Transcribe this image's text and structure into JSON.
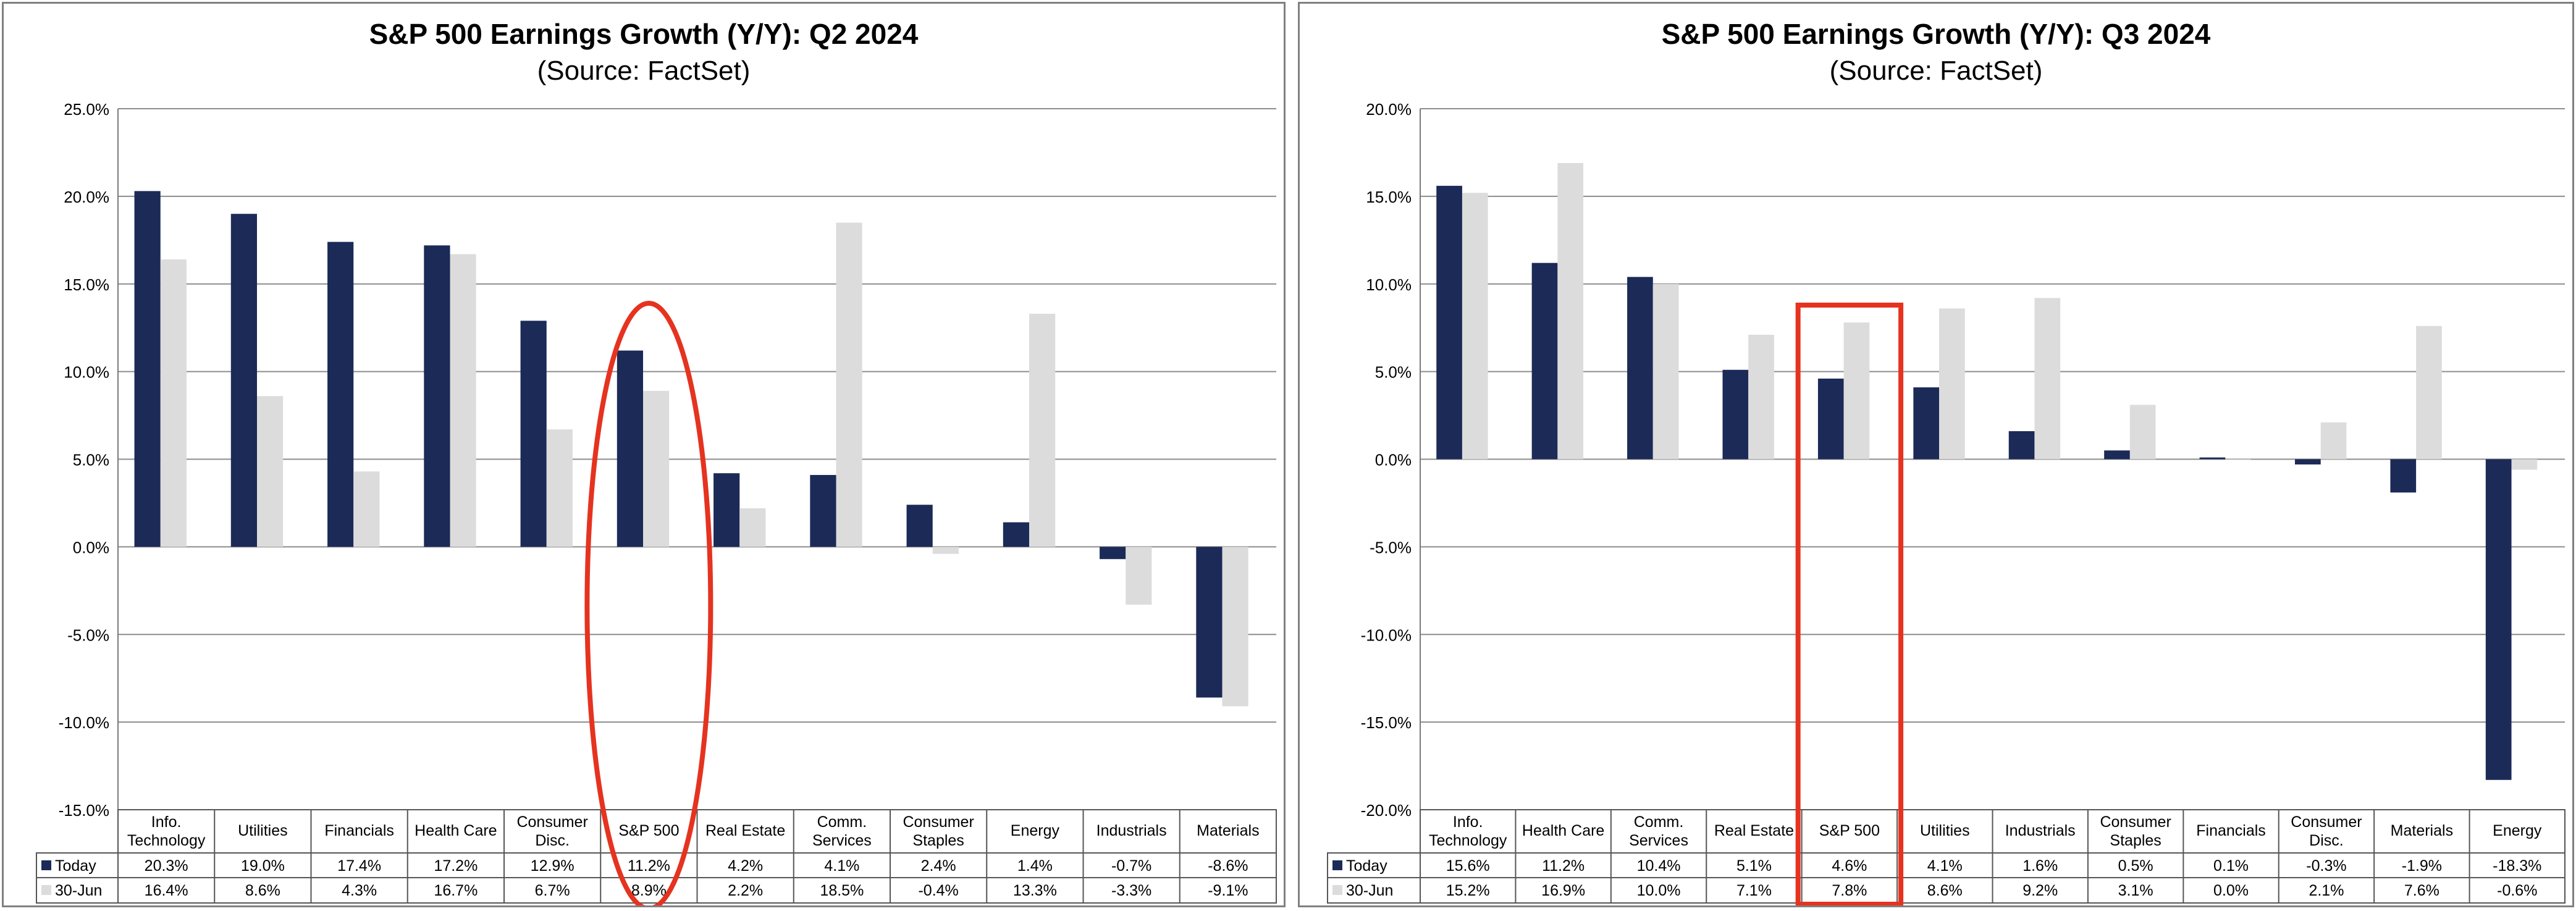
{
  "charts": [
    {
      "title": "S&P 500 Earnings Growth (Y/Y): Q2 2024",
      "subtitle": "(Source: FactSet)",
      "highlight": "ellipse",
      "highlight_index": 5
    },
    {
      "title": "S&P 500 Earnings Growth (Y/Y): Q3 2024",
      "subtitle": "(Source: FactSet)",
      "highlight": "rectangle",
      "highlight_index": 4
    }
  ],
  "colors": {
    "today": "#1b2a57",
    "prior": "#dcdcdc",
    "highlight": "#e53320",
    "grid": "#8c8c8c"
  },
  "chart_data": [
    {
      "type": "bar",
      "title": "S&P 500 Earnings Growth (Y/Y): Q2 2024",
      "subtitle": "(Source: FactSet)",
      "categories": [
        "Info.\nTechnology",
        "Utilities",
        "Financials",
        "Health Care",
        "Consumer\nDisc.",
        "S&P 500",
        "Real Estate",
        "Comm.\nServices",
        "Consumer\nStaples",
        "Energy",
        "Industrials",
        "Materials"
      ],
      "series": [
        {
          "name": "Today",
          "values": [
            20.3,
            19.0,
            17.4,
            17.2,
            12.9,
            11.2,
            4.2,
            4.1,
            2.4,
            1.4,
            -0.7,
            -8.6
          ],
          "labels": [
            "20.3%",
            "19.0%",
            "17.4%",
            "17.2%",
            "12.9%",
            "11.2%",
            "4.2%",
            "4.1%",
            "2.4%",
            "1.4%",
            "-0.7%",
            "-8.6%"
          ]
        },
        {
          "name": "30-Jun",
          "values": [
            16.4,
            8.6,
            4.3,
            16.7,
            6.7,
            8.9,
            2.2,
            18.5,
            -0.4,
            13.3,
            -3.3,
            -9.1
          ],
          "labels": [
            "16.4%",
            "8.6%",
            "4.3%",
            "16.7%",
            "6.7%",
            "8.9%",
            "2.2%",
            "18.5%",
            "-0.4%",
            "13.3%",
            "-3.3%",
            "-9.1%"
          ]
        }
      ],
      "ylim": [
        -15,
        25
      ],
      "ytick_values": [
        25,
        20,
        15,
        10,
        5,
        0,
        -5,
        -10,
        -15
      ],
      "yticks": [
        "25.0%",
        "20.0%",
        "15.0%",
        "10.0%",
        "5.0%",
        "0.0%",
        "-5.0%",
        "-10.0%",
        "-15.0%"
      ],
      "grid": true,
      "legend": "data-table"
    },
    {
      "type": "bar",
      "title": "S&P 500 Earnings Growth (Y/Y): Q3 2024",
      "subtitle": "(Source: FactSet)",
      "categories": [
        "Info.\nTechnology",
        "Health Care",
        "Comm.\nServices",
        "Real Estate",
        "S&P 500",
        "Utilities",
        "Industrials",
        "Consumer\nStaples",
        "Financials",
        "Consumer\nDisc.",
        "Materials",
        "Energy"
      ],
      "series": [
        {
          "name": "Today",
          "values": [
            15.6,
            11.2,
            10.4,
            5.1,
            4.6,
            4.1,
            1.6,
            0.5,
            0.1,
            -0.3,
            -1.9,
            -18.3
          ],
          "labels": [
            "15.6%",
            "11.2%",
            "10.4%",
            "5.1%",
            "4.6%",
            "4.1%",
            "1.6%",
            "0.5%",
            "0.1%",
            "-0.3%",
            "-1.9%",
            "-18.3%"
          ]
        },
        {
          "name": "30-Jun",
          "values": [
            15.2,
            16.9,
            10.0,
            7.1,
            7.8,
            8.6,
            9.2,
            3.1,
            0.0,
            2.1,
            7.6,
            -0.6
          ],
          "labels": [
            "15.2%",
            "16.9%",
            "10.0%",
            "7.1%",
            "7.8%",
            "8.6%",
            "9.2%",
            "3.1%",
            "0.0%",
            "2.1%",
            "7.6%",
            "-0.6%"
          ]
        }
      ],
      "ylim": [
        -20,
        20
      ],
      "ytick_values": [
        20,
        15,
        10,
        5,
        0,
        -5,
        -10,
        -15,
        -20
      ],
      "yticks": [
        "20.0%",
        "15.0%",
        "10.0%",
        "5.0%",
        "0.0%",
        "-5.0%",
        "-10.0%",
        "-15.0%",
        "-20.0%"
      ],
      "grid": true,
      "legend": "data-table"
    }
  ]
}
